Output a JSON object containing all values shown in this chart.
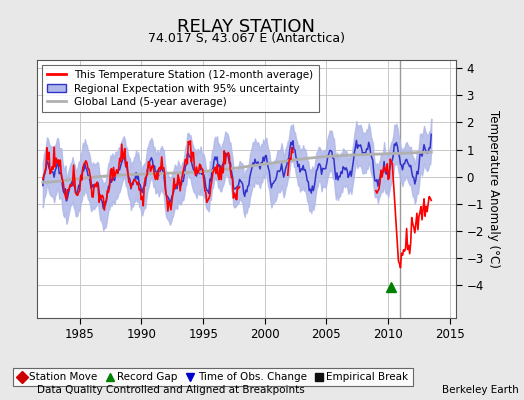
{
  "title": "RELAY STATION",
  "subtitle": "74.017 S, 43.067 E (Antarctica)",
  "ylabel": "Temperature Anomaly (°C)",
  "xlabel_left": "Data Quality Controlled and Aligned at Breakpoints",
  "xlabel_right": "Berkeley Earth",
  "xlim": [
    1981.5,
    2015.5
  ],
  "ylim": [
    -5.2,
    4.3
  ],
  "yticks": [
    -4,
    -3,
    -2,
    -1,
    0,
    1,
    2,
    3,
    4
  ],
  "xticks": [
    1985,
    1990,
    1995,
    2000,
    2005,
    2010,
    2015
  ],
  "background_color": "#e8e8e8",
  "plot_bg_color": "#ffffff",
  "grid_color": "#c8c8c8",
  "vertical_line_x": 2011.0,
  "record_gap_marker_x": 2010.2,
  "record_gap_marker_y": -4.05,
  "station_line_color": "#ff0000",
  "regional_line_color": "#3333cc",
  "regional_fill_color": "#b0b8e8",
  "global_land_color": "#b0b0b0",
  "legend_items": [
    "This Temperature Station (12-month average)",
    "Regional Expectation with 95% uncertainty",
    "Global Land (5-year average)"
  ],
  "bottom_legend_items": [
    {
      "label": "Station Move",
      "color": "#cc0000",
      "marker": "D"
    },
    {
      "label": "Record Gap",
      "color": "#008000",
      "marker": "^"
    },
    {
      "label": "Time of Obs. Change",
      "color": "#0000cc",
      "marker": "v"
    },
    {
      "label": "Empirical Break",
      "color": "#111111",
      "marker": "s"
    }
  ]
}
